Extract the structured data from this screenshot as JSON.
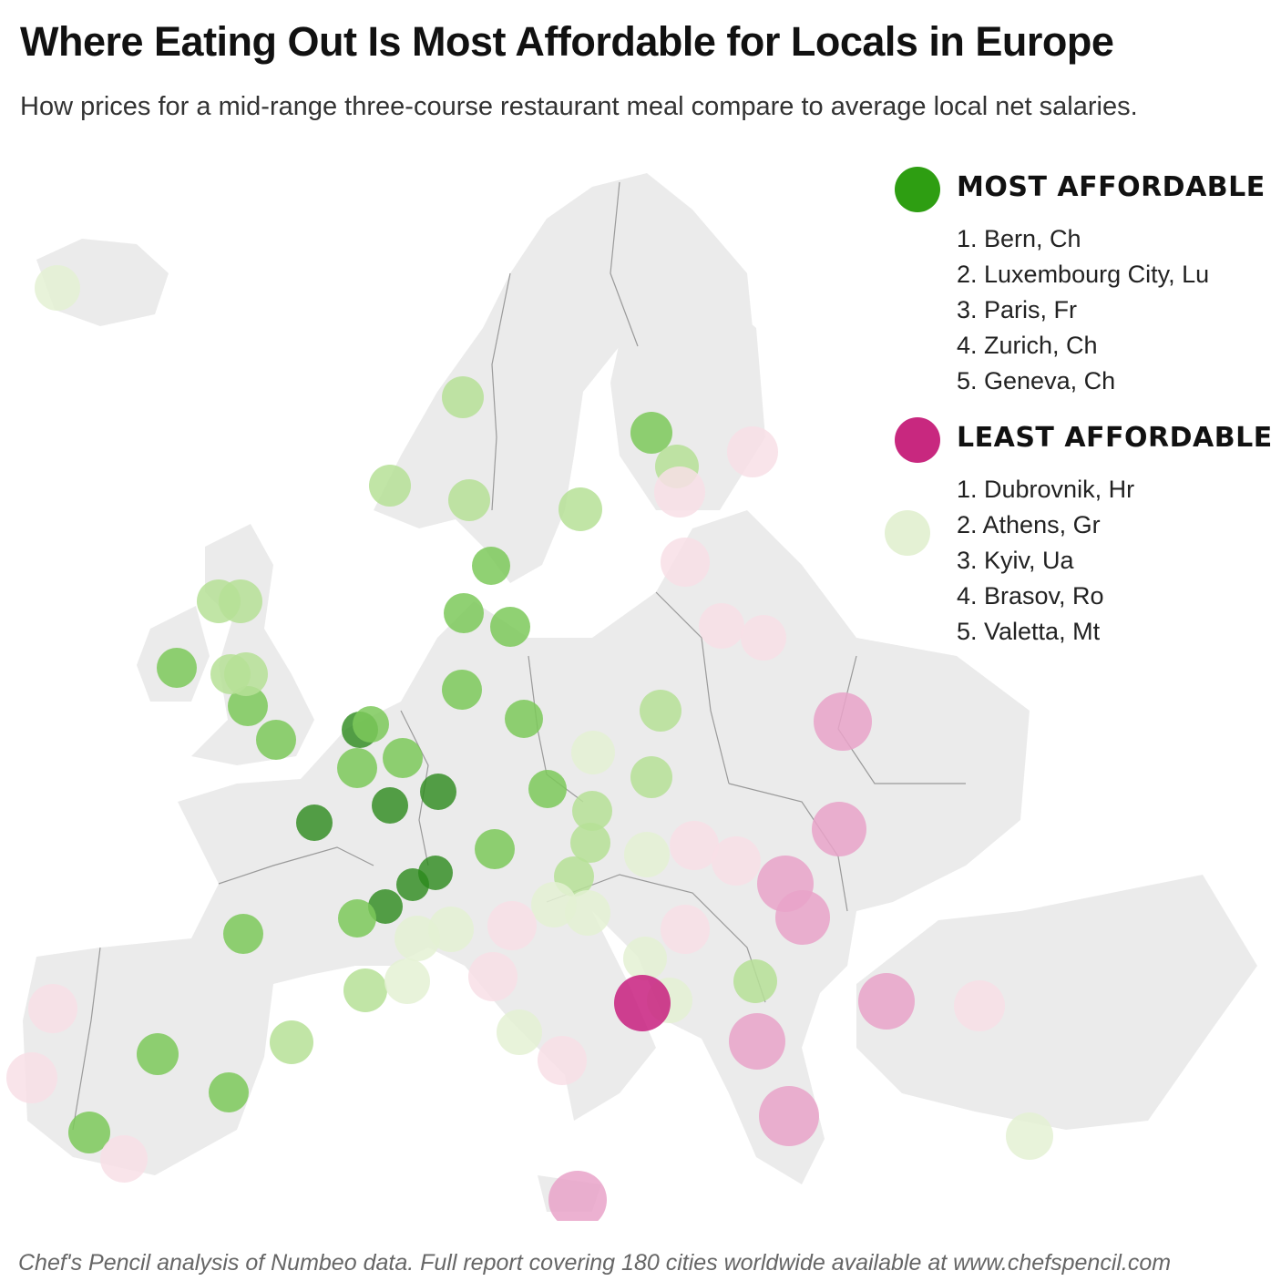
{
  "title": "Where Eating Out Is Most Affordable for Locals in Europe",
  "subtitle": "How prices for a mid-range three-course restaurant meal compare to average local net salaries.",
  "legend": {
    "most": {
      "label": "MOST AFFORDABLE",
      "color": "#2e9e12",
      "items": [
        "1.  Bern, Ch",
        "2. Luxembourg City, Lu",
        "3. Paris, Fr",
        "4. Zurich, Ch",
        "5. Geneva, Ch"
      ]
    },
    "least": {
      "label": "LEAST AFFORDABLE",
      "color": "#c8287f",
      "items": [
        "1.  Dubrovnik, Hr",
        "2. Athens, Gr",
        "3. Kyiv, Ua",
        "4. Brasov, Ro",
        "5. Valetta, Mt"
      ]
    }
  },
  "colors": {
    "land": "#ebebeb",
    "border": "#9a9a9a",
    "scale": [
      "#2c8a1c",
      "#7cc95a",
      "#b6e096",
      "#e4f1d4",
      "#f8dfe6",
      "#e9a3c9",
      "#c8207f"
    ]
  },
  "footer": "Chef's Pencil analysis of Numbeo data. Full report covering 180 cities worldwide available at www.chefspencil.com"
}
